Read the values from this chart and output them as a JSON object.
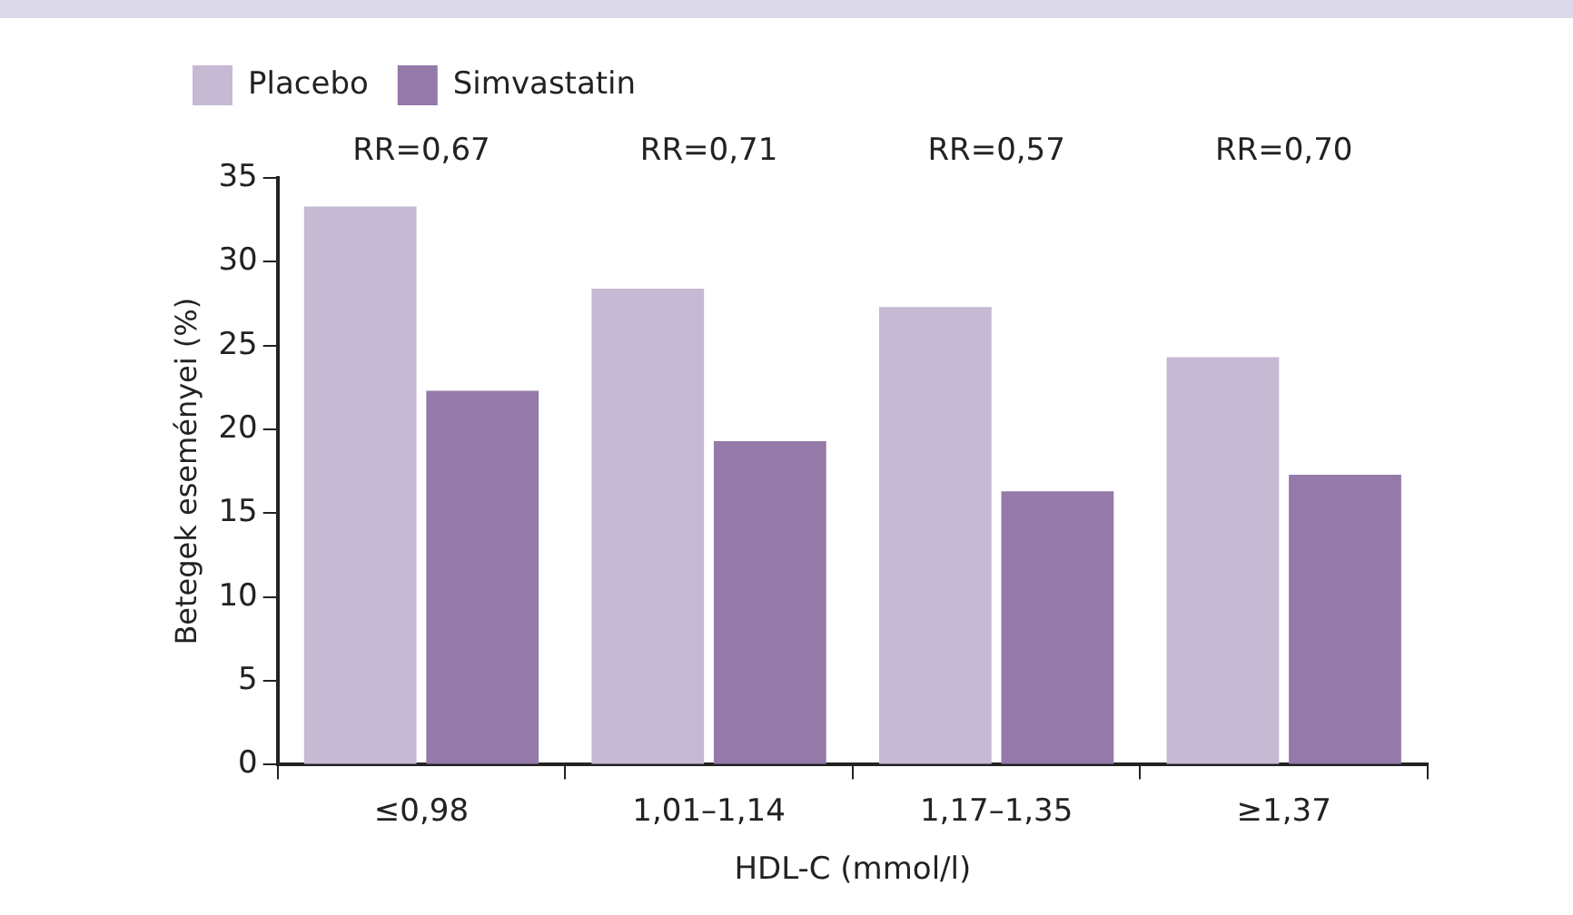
{
  "chart_data": {
    "type": "bar",
    "xlabel": "HDL-C (mmol/l)",
    "ylabel": "Betegek eseményei (%)",
    "categories": [
      "≤0,98",
      "1,01–1,14",
      "1,17–1,35",
      "≥1,37"
    ],
    "series": [
      {
        "name": "Placebo",
        "color": "#c6b9d4",
        "values": [
          33.3,
          28.4,
          27.3,
          24.3
        ]
      },
      {
        "name": "Simvastatin",
        "color": "#937aa8",
        "values": [
          22.3,
          19.3,
          16.3,
          17.3
        ]
      }
    ],
    "ylim": [
      0,
      35
    ],
    "yticks": [
      0,
      5,
      10,
      15,
      20,
      25,
      30,
      35
    ],
    "grid": false,
    "legend": "top left",
    "annotations": [
      "RR=0,67",
      "RR=0,71",
      "RR=0,57",
      "RR=0,70"
    ]
  }
}
